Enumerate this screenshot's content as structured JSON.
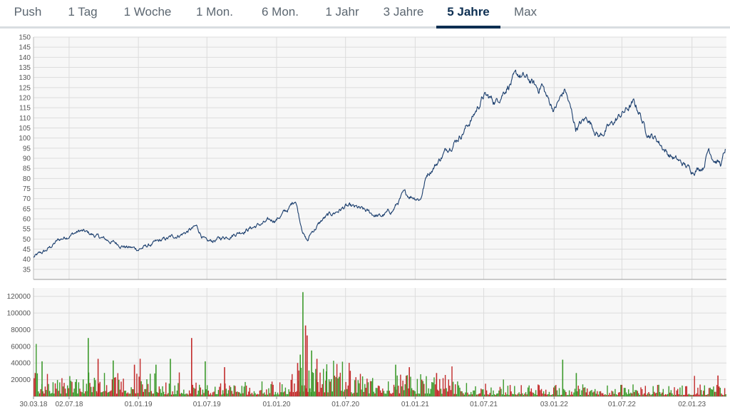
{
  "tabs": [
    {
      "label": "Push",
      "active": false
    },
    {
      "label": "1 Tag",
      "active": false
    },
    {
      "label": "1 Woche",
      "active": false
    },
    {
      "label": "1 Mon.",
      "active": false
    },
    {
      "label": "6 Mon.",
      "active": false
    },
    {
      "label": "1 Jahr",
      "active": false
    },
    {
      "label": "3 Jahre",
      "active": false
    },
    {
      "label": "5 Jahre",
      "active": true
    },
    {
      "label": "Max",
      "active": false
    }
  ],
  "colors": {
    "price_line": "#1c3f6e",
    "volume_up": "#3c9a2c",
    "volume_down": "#c22b2b",
    "grid": "#dcdcdc",
    "plot_bg": "#f7f7f7",
    "active_tab": "#0d2f52"
  },
  "chart_data": [
    {
      "type": "line",
      "name": "price",
      "ylim": [
        30,
        150
      ],
      "yticks": [
        35,
        40,
        45,
        50,
        55,
        60,
        65,
        70,
        75,
        80,
        85,
        90,
        95,
        100,
        105,
        110,
        115,
        120,
        125,
        130,
        135,
        140,
        145,
        150
      ],
      "grid": true,
      "x": [
        "2018-03-30",
        "2018-05-01",
        "2018-06-01",
        "2018-07-02",
        "2018-08-01",
        "2018-09-03",
        "2018-10-01",
        "2018-11-01",
        "2018-12-03",
        "2019-01-01",
        "2019-02-01",
        "2019-03-01",
        "2019-04-01",
        "2019-05-02",
        "2019-06-03",
        "2019-07-01",
        "2019-08-01",
        "2019-09-02",
        "2019-10-01",
        "2019-11-01",
        "2019-12-02",
        "2020-01-01",
        "2020-02-03",
        "2020-02-20",
        "2020-03-02",
        "2020-03-16",
        "2020-03-23",
        "2020-04-01",
        "2020-05-04",
        "2020-06-01",
        "2020-07-01",
        "2020-08-03",
        "2020-09-01",
        "2020-10-01",
        "2020-11-02",
        "2020-12-01",
        "2021-01-01",
        "2021-01-15",
        "2021-02-01",
        "2021-03-01",
        "2021-04-01",
        "2021-05-03",
        "2021-06-01",
        "2021-07-01",
        "2021-08-02",
        "2021-09-01",
        "2021-10-01",
        "2021-11-01",
        "2021-11-22",
        "2021-12-01",
        "2021-12-15",
        "2022-01-03",
        "2022-02-01",
        "2022-03-01",
        "2022-04-01",
        "2022-05-02",
        "2022-06-01",
        "2022-07-01",
        "2022-08-01",
        "2022-08-16",
        "2022-09-01",
        "2022-10-03",
        "2022-11-01",
        "2022-12-01",
        "2023-01-02",
        "2023-02-01",
        "2023-02-15",
        "2023-03-01",
        "2023-03-20",
        "2023-03-31"
      ],
      "y": [
        41,
        44,
        49,
        52,
        54,
        52,
        50,
        48,
        46,
        45,
        47,
        49,
        51,
        53,
        56,
        48,
        50,
        52,
        54,
        56,
        58,
        60,
        65,
        70,
        60,
        51,
        49,
        53,
        60,
        63,
        66,
        65,
        63,
        61,
        64,
        72,
        71,
        70,
        82,
        88,
        96,
        102,
        110,
        121,
        118,
        126,
        131,
        128,
        124,
        127,
        120,
        114,
        124,
        105,
        110,
        101,
        106,
        112,
        117,
        113,
        104,
        99,
        92,
        88,
        84,
        86,
        95,
        90,
        87,
        94
      ]
    },
    {
      "type": "bar",
      "name": "volume",
      "ylim": [
        0,
        130000
      ],
      "yticks": [
        20000,
        40000,
        60000,
        80000,
        100000,
        120000
      ],
      "grid": true,
      "x_tick_labels": [
        "30.03.18",
        "02.07.18",
        "01.01.19",
        "01.07.19",
        "01.01.20",
        "01.07.20",
        "01.01.21",
        "01.07.21",
        "03.01.22",
        "01.07.22",
        "02.01.23"
      ],
      "x_tick_dates": [
        "2018-03-30",
        "2018-07-02",
        "2019-01-01",
        "2019-07-01",
        "2020-01-01",
        "2020-07-01",
        "2021-01-01",
        "2021-07-01",
        "2022-01-03",
        "2022-07-01",
        "2023-01-02"
      ],
      "base_level": 5000,
      "spikes": [
        {
          "date": "2018-04-20",
          "value": 42000,
          "dir": "up"
        },
        {
          "date": "2018-08-20",
          "value": 70000,
          "dir": "up"
        },
        {
          "date": "2018-09-15",
          "value": 45000,
          "dir": "down"
        },
        {
          "date": "2018-10-25",
          "value": 43000,
          "dir": "up"
        },
        {
          "date": "2018-12-20",
          "value": 38000,
          "dir": "down"
        },
        {
          "date": "2019-02-15",
          "value": 38000,
          "dir": "up"
        },
        {
          "date": "2019-03-25",
          "value": 45000,
          "dir": "up"
        },
        {
          "date": "2019-05-20",
          "value": 70000,
          "dir": "down"
        },
        {
          "date": "2019-06-25",
          "value": 42000,
          "dir": "up"
        },
        {
          "date": "2019-08-15",
          "value": 35000,
          "dir": "down"
        },
        {
          "date": "2020-02-24",
          "value": 40000,
          "dir": "down"
        },
        {
          "date": "2020-03-02",
          "value": 50000,
          "dir": "up"
        },
        {
          "date": "2020-03-09",
          "value": 125000,
          "dir": "up"
        },
        {
          "date": "2020-03-16",
          "value": 85000,
          "dir": "down"
        },
        {
          "date": "2020-03-20",
          "value": 73000,
          "dir": "down"
        },
        {
          "date": "2020-04-01",
          "value": 55000,
          "dir": "up"
        },
        {
          "date": "2020-04-15",
          "value": 45000,
          "dir": "down"
        },
        {
          "date": "2020-05-10",
          "value": 30000,
          "dir": "up"
        },
        {
          "date": "2020-11-09",
          "value": 38000,
          "dir": "up"
        },
        {
          "date": "2020-12-15",
          "value": 35000,
          "dir": "down"
        },
        {
          "date": "2021-02-25",
          "value": 28000,
          "dir": "down"
        },
        {
          "date": "2022-01-24",
          "value": 44000,
          "dir": "up"
        },
        {
          "date": "2022-03-01",
          "value": 28000,
          "dir": "up"
        },
        {
          "date": "2023-03-10",
          "value": 25000,
          "dir": "down"
        }
      ]
    }
  ]
}
